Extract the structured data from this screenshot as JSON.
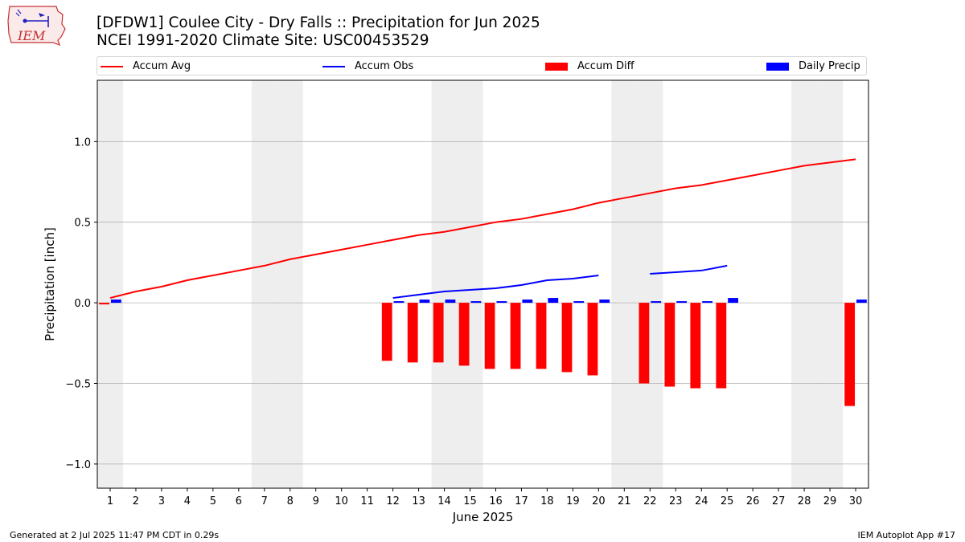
{
  "header": {
    "logo_text": "IEM",
    "title_line1": "[DFDW1] Coulee City - Dry Falls :: Precipitation for Jun 2025",
    "title_line2": "NCEI 1991-2020 Climate Site: USC00453529"
  },
  "legend": {
    "accum_avg": "Accum Avg",
    "accum_obs": "Accum Obs",
    "accum_diff": "Accum Diff",
    "daily_precip": "Daily Precip"
  },
  "footer": {
    "generated": "Generated at 2 Jul 2025 11:47 PM CDT in 0.29s",
    "app": "IEM Autoplot App #17"
  },
  "colors": {
    "accum_avg": "#ff0000",
    "accum_obs": "#0000ff",
    "accum_diff": "#ff0000",
    "daily_precip": "#0000ff",
    "weekend_shade": "#eeeeee",
    "grid": "#b0b0b0"
  },
  "chart_data": {
    "type": "bar",
    "xlabel": "June 2025",
    "ylabel": "Precipitation [inch]",
    "xlim": [
      0.5,
      30.5
    ],
    "ylim": [
      -1.15,
      1.38
    ],
    "yticks": [
      -1.0,
      -0.5,
      0.0,
      0.5,
      1.0
    ],
    "ytick_labels": [
      "−1.0",
      "−0.5",
      "0.0",
      "0.5",
      "1.0"
    ],
    "days": [
      1,
      2,
      3,
      4,
      5,
      6,
      7,
      8,
      9,
      10,
      11,
      12,
      13,
      14,
      15,
      16,
      17,
      18,
      19,
      20,
      21,
      22,
      23,
      24,
      25,
      26,
      27,
      28,
      29,
      30
    ],
    "weekend_days": [
      1,
      7,
      8,
      14,
      15,
      21,
      22,
      28,
      29
    ],
    "grid": "horizontal",
    "legend_position": "top",
    "series": [
      {
        "name": "Accum Avg",
        "kind": "line",
        "x": [
          1,
          2,
          3,
          4,
          5,
          6,
          7,
          8,
          9,
          10,
          11,
          12,
          13,
          14,
          15,
          16,
          17,
          18,
          19,
          20,
          21,
          22,
          23,
          24,
          25,
          26,
          27,
          28,
          29,
          30
        ],
        "values": [
          0.03,
          0.07,
          0.1,
          0.14,
          0.17,
          0.2,
          0.23,
          0.27,
          0.3,
          0.33,
          0.36,
          0.39,
          0.42,
          0.44,
          0.47,
          0.5,
          0.52,
          0.55,
          0.58,
          0.62,
          0.65,
          0.68,
          0.71,
          0.73,
          0.76,
          0.79,
          0.82,
          0.85,
          0.87,
          0.89
        ]
      },
      {
        "name": "Accum Obs",
        "kind": "line",
        "x": [
          12,
          13,
          14,
          15,
          16,
          17,
          18,
          19,
          20,
          21,
          22,
          23,
          24,
          25
        ],
        "values": [
          0.03,
          0.05,
          0.07,
          0.08,
          0.09,
          0.11,
          0.14,
          0.15,
          0.17,
          null,
          0.18,
          0.19,
          0.2,
          0.23
        ]
      },
      {
        "name": "Accum Diff",
        "kind": "bar",
        "x": [
          1,
          12,
          13,
          14,
          15,
          16,
          17,
          18,
          19,
          20,
          22,
          23,
          24,
          25,
          30
        ],
        "values": [
          -0.01,
          -0.36,
          -0.37,
          -0.37,
          -0.39,
          -0.41,
          -0.41,
          -0.41,
          -0.43,
          -0.45,
          -0.5,
          -0.52,
          -0.53,
          -0.53,
          -0.64
        ]
      },
      {
        "name": "Daily Precip",
        "kind": "bar",
        "x": [
          1,
          12,
          13,
          14,
          15,
          16,
          17,
          18,
          19,
          20,
          22,
          23,
          24,
          25,
          30
        ],
        "values": [
          0.02,
          0.01,
          0.02,
          0.02,
          0.01,
          0.01,
          0.02,
          0.03,
          0.01,
          0.02,
          0.01,
          0.01,
          0.01,
          0.03,
          0.02
        ]
      }
    ]
  }
}
